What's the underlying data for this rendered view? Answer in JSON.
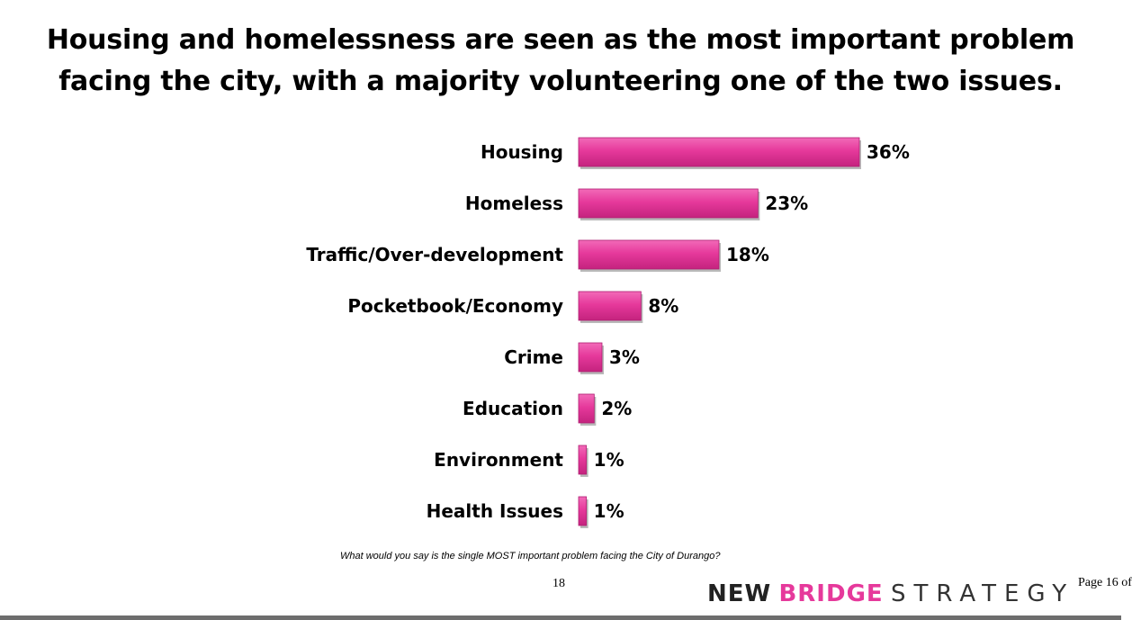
{
  "title": {
    "line1": "Housing and homelessness are seen as the most important problem",
    "line2": "facing the city, with a majority volunteering one of the two issues."
  },
  "chart_data": {
    "type": "bar",
    "orientation": "horizontal",
    "categories": [
      "Housing",
      "Homeless",
      "Traffic/Over-development",
      "Pocketbook/Economy",
      "Crime",
      "Education",
      "Environment",
      "Health Issues"
    ],
    "values": [
      36,
      23,
      18,
      8,
      3,
      2,
      1,
      1
    ],
    "value_labels": [
      "36%",
      "23%",
      "18%",
      "8%",
      "3%",
      "2%",
      "1%",
      "1%"
    ],
    "unit": "%",
    "xlim": [
      0,
      36
    ],
    "grid": false,
    "legend": "none",
    "bar_color": "#e6399b"
  },
  "question": "What would you say is the single MOST important problem facing the City of Durango?",
  "page_number": "18",
  "logo": {
    "word1": "NEW",
    "word2": "BRIDGE",
    "word3": "STRATEGY"
  },
  "page_of": "Page 16 of"
}
